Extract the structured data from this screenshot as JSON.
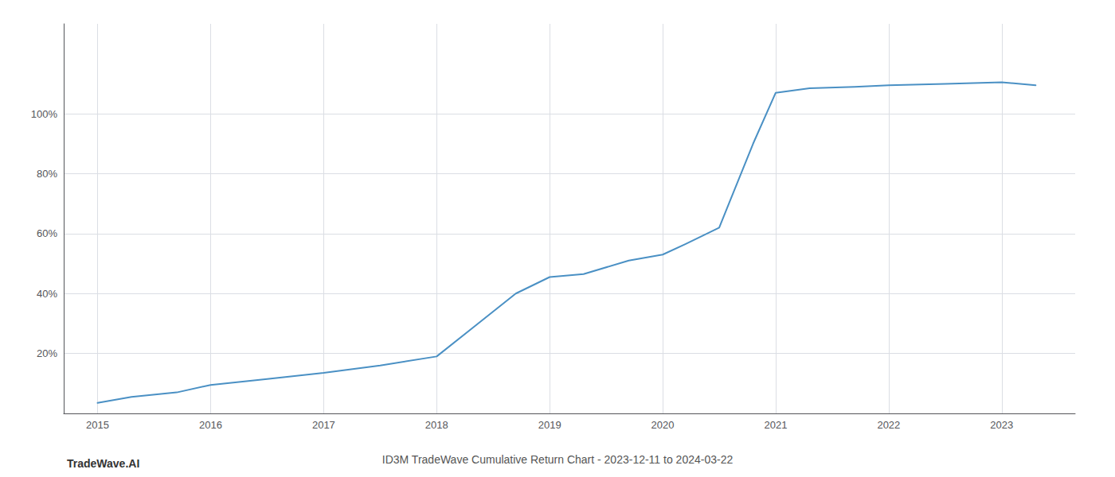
{
  "chart_data": {
    "type": "line",
    "title": "ID3M TradeWave Cumulative Return Chart - 2023-12-11 to 2024-03-22",
    "annotations": [
      "TradeWave.AI"
    ],
    "x": [
      2015.0,
      2015.3,
      2015.7,
      2016.0,
      2016.5,
      2017.0,
      2017.5,
      2018.0,
      2018.3,
      2018.7,
      2019.0,
      2019.3,
      2019.7,
      2020.0,
      2020.2,
      2020.5,
      2020.8,
      2021.0,
      2021.3,
      2021.7,
      2022.0,
      2022.5,
      2023.0,
      2023.3
    ],
    "values": [
      3.5,
      5.5,
      7.0,
      9.5,
      11.5,
      13.5,
      16.0,
      19.0,
      28.0,
      40.0,
      45.5,
      46.5,
      51.0,
      53.0,
      56.5,
      62.0,
      90.0,
      107.0,
      108.5,
      109.0,
      109.5,
      110.0,
      110.5,
      109.5
    ],
    "color": "#4a90c4",
    "xlim": [
      2014.7,
      2023.65
    ],
    "xticks": [
      2015,
      2016,
      2017,
      2018,
      2019,
      2020,
      2021,
      2022,
      2023
    ],
    "ylim": [
      0,
      130
    ],
    "yticks": [
      {
        "value": 20,
        "label": "20%"
      },
      {
        "value": 40,
        "label": "40%"
      },
      {
        "value": 60,
        "label": "60%"
      },
      {
        "value": 80,
        "label": "80%"
      },
      {
        "value": 100,
        "label": "100%"
      }
    ],
    "grid": true
  }
}
